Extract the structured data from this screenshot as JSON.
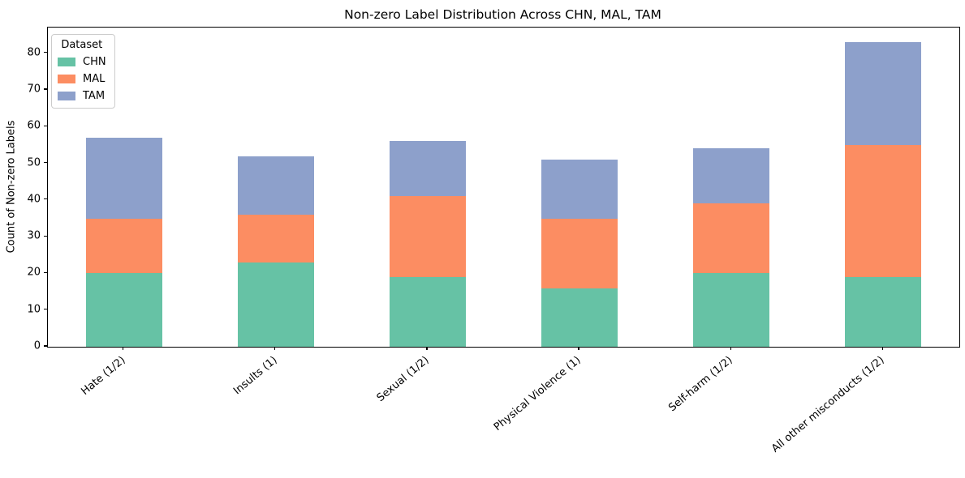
{
  "figure": {
    "title": "Non-zero Label Distribution Across CHN, MAL, TAM",
    "ylabel": "Count of Non-zero Labels"
  },
  "legend": {
    "title": "Dataset",
    "entries": [
      "CHN",
      "MAL",
      "TAM"
    ]
  },
  "chart_data": {
    "type": "bar",
    "stacked": true,
    "title": "Non-zero Label Distribution Across CHN, MAL, TAM",
    "xlabel": "",
    "ylabel": "Count of Non-zero Labels",
    "categories": [
      "Hate (1/2)",
      "Insults (1)",
      "Sexual (1/2)",
      "Physical Violence (1)",
      "Self-harm (1/2)",
      "All other misconducts (1/2)"
    ],
    "series": [
      {
        "name": "CHN",
        "color": "#66c2a5",
        "values": [
          20,
          23,
          19,
          16,
          20,
          19
        ]
      },
      {
        "name": "MAL",
        "color": "#fc8d62",
        "values": [
          15,
          13,
          22,
          19,
          19,
          36
        ]
      },
      {
        "name": "TAM",
        "color": "#8da0cb",
        "values": [
          22,
          16,
          15,
          16,
          15,
          28
        ]
      }
    ],
    "stack_totals": [
      57,
      52,
      56,
      51,
      54,
      83
    ],
    "ylim": [
      0,
      87
    ],
    "yticks": [
      0,
      10,
      20,
      30,
      40,
      50,
      60,
      70,
      80
    ],
    "grid": false,
    "legend_position": "upper left",
    "legend_title": "Dataset",
    "x_tick_rotation_deg": 40,
    "axis_color": "#000000"
  }
}
